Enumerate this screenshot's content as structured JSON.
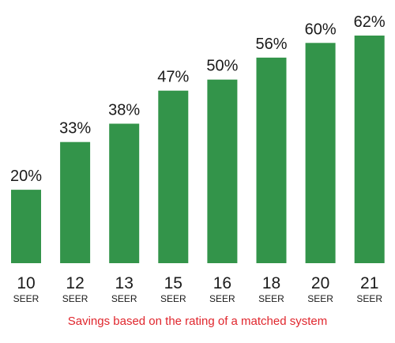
{
  "chart_data": {
    "type": "bar",
    "categories": [
      "10",
      "12",
      "13",
      "15",
      "16",
      "18",
      "20",
      "21"
    ],
    "category_unit": "SEER",
    "values": [
      20,
      33,
      38,
      47,
      50,
      56,
      60,
      62
    ],
    "data_labels": [
      "20%",
      "33%",
      "38%",
      "47%",
      "50%",
      "56%",
      "60%",
      "62%"
    ],
    "ylim": [
      0,
      62
    ],
    "title": "",
    "xlabel": "",
    "ylabel": "",
    "caption": "Savings based on the rating of a matched system",
    "bar_color": "#33944a",
    "caption_color": "#e0262d",
    "grid": false
  }
}
